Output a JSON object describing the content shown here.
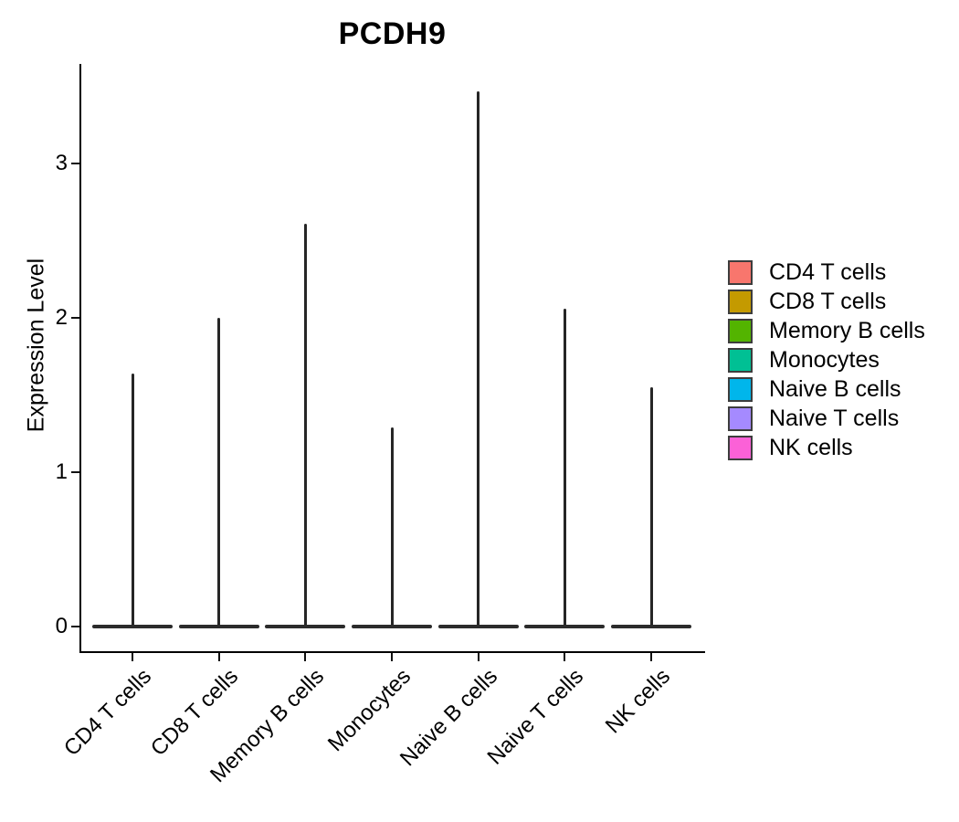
{
  "chart_data": {
    "type": "violin",
    "title": "PCDH9",
    "xlabel": "",
    "ylabel": "Expression Level",
    "yticks": [
      0,
      1,
      2,
      3
    ],
    "ylim": [
      -0.17,
      3.64
    ],
    "grid": false,
    "legend_position": "right",
    "outline_color": "#262626",
    "categories": [
      "CD4 T cells",
      "CD8 T cells",
      "Memory B cells",
      "Monocytes",
      "Naive B cells",
      "Naive T cells",
      "NK cells"
    ],
    "series": [
      {
        "name": "CD4 T cells",
        "color": "#F8766D",
        "violin_base": 0,
        "violin_max": 1.64
      },
      {
        "name": "CD8 T cells",
        "color": "#C49A00",
        "violin_base": 0,
        "violin_max": 2.0
      },
      {
        "name": "Memory B cells",
        "color": "#53B400",
        "violin_base": 0,
        "violin_max": 2.61
      },
      {
        "name": "Monocytes",
        "color": "#00C094",
        "violin_base": 0,
        "violin_max": 1.29
      },
      {
        "name": "Naive B cells",
        "color": "#00B6EB",
        "violin_base": 0,
        "violin_max": 3.47
      },
      {
        "name": "Naive T cells",
        "color": "#A58AFF",
        "violin_base": 0,
        "violin_max": 2.06
      },
      {
        "name": "NK cells",
        "color": "#FB61D7",
        "violin_base": 0,
        "violin_max": 1.55
      }
    ]
  }
}
